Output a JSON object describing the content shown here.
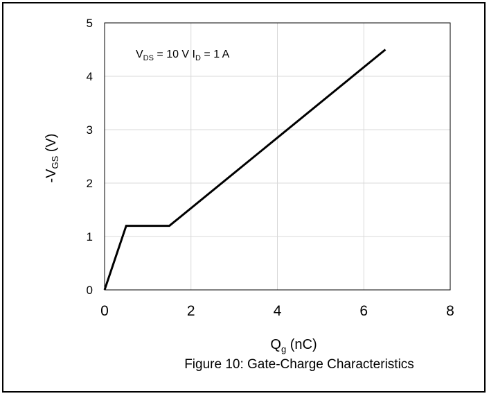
{
  "chart_data": {
    "type": "line",
    "caption": "Figure 10: Gate-Charge Characteristics",
    "xlabel": {
      "main": "Q",
      "sub": "g",
      "unit": " (nC)"
    },
    "ylabel": {
      "prefix": "-V",
      "sub": "GS",
      "unit": " (V)"
    },
    "xlim": [
      0,
      8
    ],
    "ylim": [
      0,
      5
    ],
    "x_ticks": [
      0,
      2,
      4,
      6,
      8
    ],
    "y_ticks": [
      0,
      1,
      2,
      3,
      4,
      5
    ],
    "grid": true,
    "annotation": {
      "v_main": "V",
      "v_sub": "DS",
      "v_rest": " = 10 V I",
      "i_sub": "D",
      "i_rest": " = 1 A"
    },
    "series": [
      {
        "color": "#000000",
        "points": [
          [
            0,
            0
          ],
          [
            0.5,
            1.2
          ],
          [
            1.5,
            1.2
          ],
          [
            6.5,
            4.5
          ]
        ]
      }
    ]
  }
}
